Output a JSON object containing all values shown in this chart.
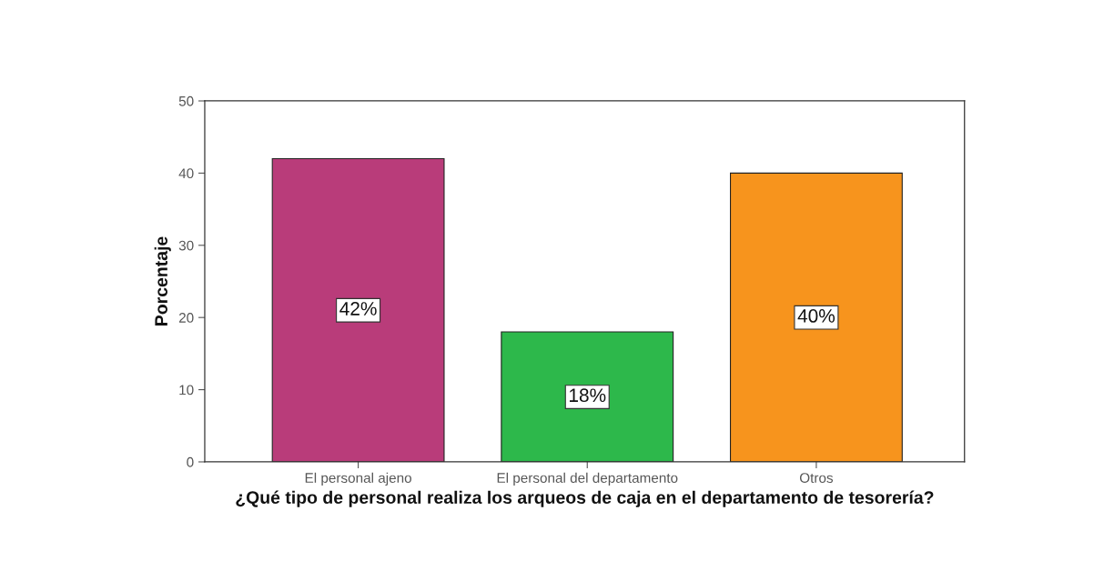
{
  "chart_data": {
    "type": "bar",
    "categories": [
      "El personal ajeno",
      "El personal del departamento",
      "Otros"
    ],
    "values": [
      42,
      18,
      40
    ],
    "colors": [
      "#b93c7a",
      "#2db84b",
      "#f7941d"
    ],
    "value_labels": [
      "42%",
      "18%",
      "40%"
    ],
    "xlabel": "¿Qué tipo de personal realiza los arqueos de caja en el departamento de tesorería?",
    "ylabel": "Porcentaje",
    "ylim": [
      0,
      50
    ],
    "yticks": [
      0,
      10,
      20,
      30,
      40,
      50
    ]
  }
}
